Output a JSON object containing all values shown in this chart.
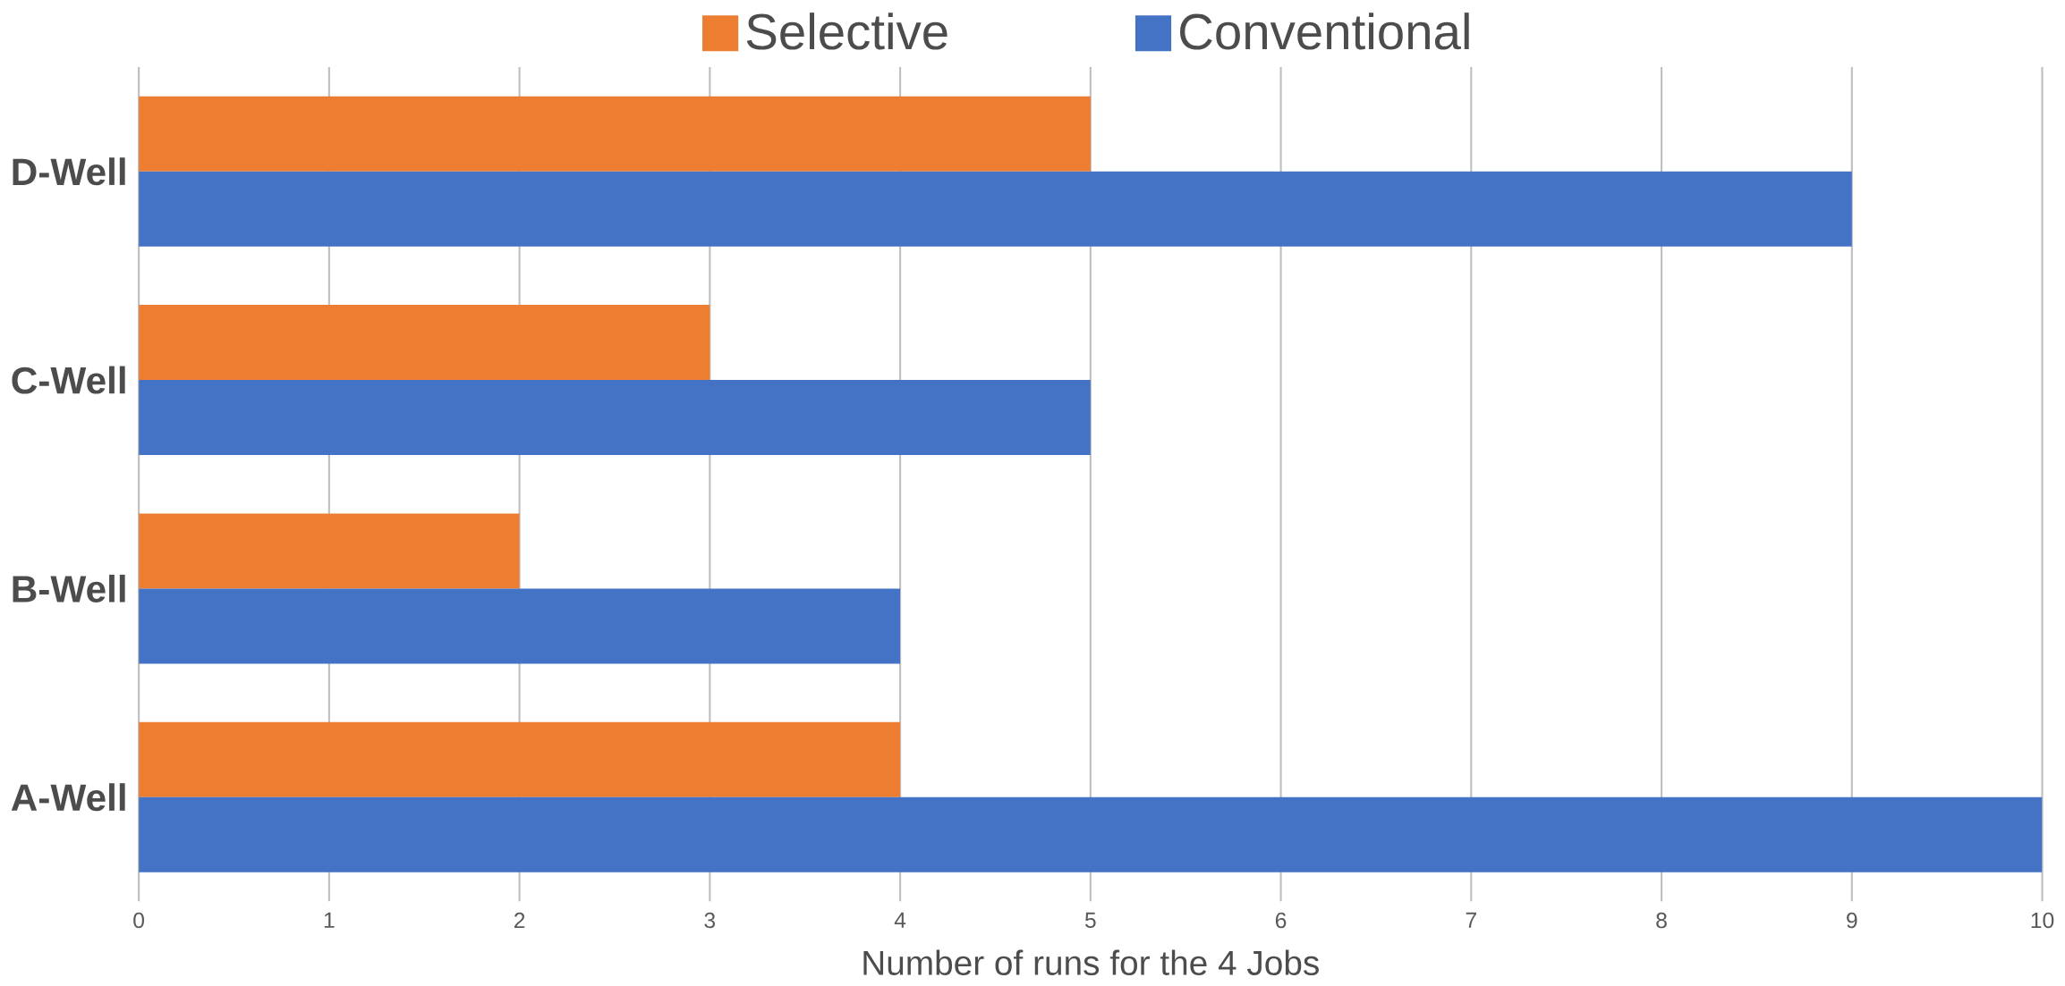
{
  "chart_data": {
    "type": "bar",
    "orientation": "horizontal",
    "xlabel": "Number of runs for the 4 Jobs",
    "categories": [
      "D-Well",
      "C-Well",
      "B-Well",
      "A-Well"
    ],
    "series": [
      {
        "name": "Selective",
        "color": "#ed7d31",
        "values": [
          5,
          3,
          2,
          4
        ]
      },
      {
        "name": "Conventional",
        "color": "#4472c4",
        "values": [
          9,
          5,
          4,
          10
        ]
      }
    ],
    "xlim": [
      0,
      10
    ],
    "xticks": [
      0,
      1,
      2,
      3,
      4,
      5,
      6,
      7,
      8,
      9,
      10
    ],
    "grid": "x",
    "legend": "top"
  }
}
